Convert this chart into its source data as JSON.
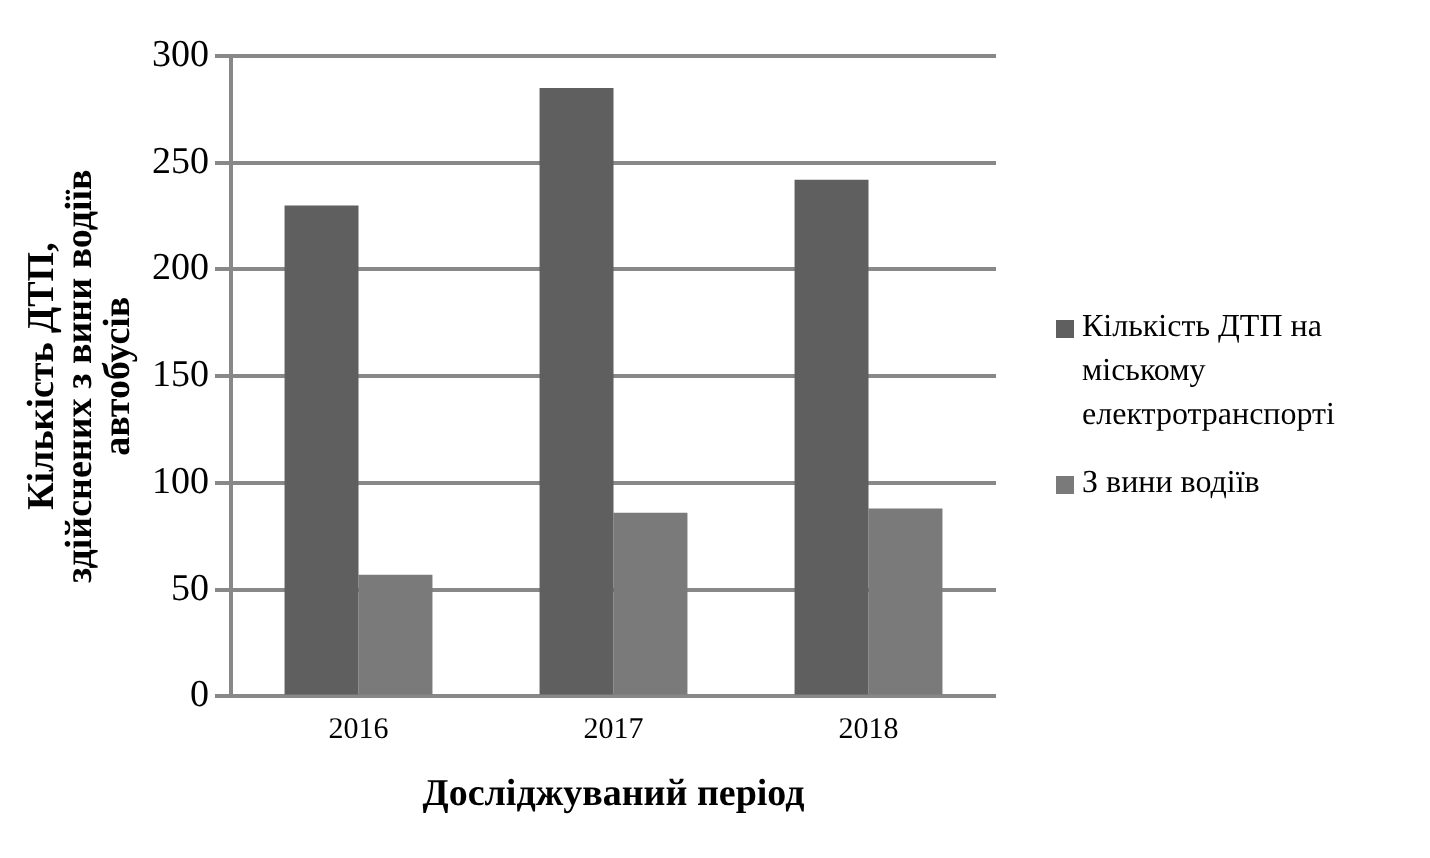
{
  "chart_data": {
    "type": "bar",
    "xlabel": "Досліджуваний період",
    "ylabel": "Кількість ДТП, здійснених з вини водіїв автобусів",
    "categories": [
      "2016",
      "2017",
      "2018"
    ],
    "series": [
      {
        "name": "Кількість  ДТП на міському електротранспорті",
        "color": "#5f5f5f",
        "values": [
          230,
          285,
          242
        ]
      },
      {
        "name": "З вини водіїв",
        "color": "#7a7a7a",
        "values": [
          57,
          86,
          88
        ]
      }
    ],
    "ylim": [
      0,
      300
    ],
    "yticks": [
      0,
      50,
      100,
      150,
      200,
      250,
      300
    ],
    "grid": "y",
    "legend": "right"
  }
}
